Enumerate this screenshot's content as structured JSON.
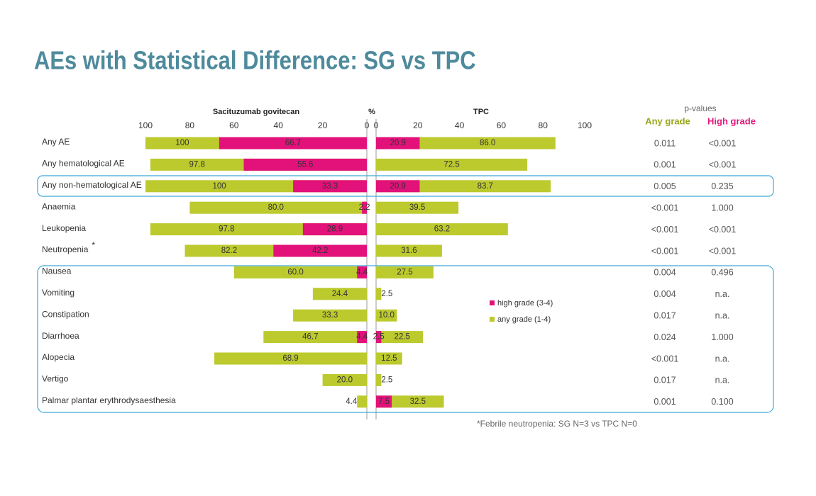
{
  "chart_data": {
    "type": "butterfly",
    "title": "AEs with Statistical Difference: SG vs TPC",
    "axis_unit": "%",
    "categories": [
      "Any AE",
      "Any hematological AE",
      "Any non-hematological AE",
      "Anaemia",
      "Leukopenia",
      "Neutropenia",
      "Nausea",
      "Vomiting",
      "Constipation",
      "Diarrhoea",
      "Alopecia",
      "Vertigo",
      "Palmar plantar erythrodysaesthesia"
    ],
    "footnote_marker": "*",
    "xlim": [
      0,
      100
    ],
    "xticks": [
      0,
      20,
      40,
      60,
      80,
      100
    ],
    "panels": [
      {
        "name": "Sacituzumab govitecan",
        "series": [
          {
            "color": "#bcca2e",
            "values": [
              100,
              97.8,
              100,
              80.0,
              97.8,
              82.2,
              60.0,
              24.4,
              33.3,
              46.7,
              68.9,
              20.0,
              4.4
            ],
            "value_labels": [
              "100",
              "97.8",
              "100",
              "80.0",
              "97.8",
              "82.2",
              "60.0",
              "24.4",
              "33.3",
              "46.7",
              "68.9",
              "20.0",
              "4.4"
            ]
          },
          {
            "color": "#e2127a",
            "values": [
              66.7,
              55.6,
              33.3,
              2.2,
              28.9,
              42.2,
              4.4,
              null,
              null,
              4.4,
              null,
              null,
              null
            ],
            "value_labels": [
              "66.7",
              "55.6",
              "33.3",
              "2.2",
              "28.9",
              "42.2",
              "4.4",
              null,
              null,
              "4.4",
              null,
              null,
              null
            ]
          }
        ]
      },
      {
        "name": "TPC",
        "series": [
          {
            "color": "#bcca2e",
            "values": [
              86.0,
              72.5,
              83.7,
              39.5,
              63.2,
              31.6,
              27.5,
              2.5,
              10.0,
              22.5,
              12.5,
              2.5,
              32.5
            ],
            "value_labels": [
              "86.0",
              "72.5",
              "83.7",
              "39.5",
              "63.2",
              "31.6",
              "27.5",
              "2.5",
              "10.0",
              "22.5",
              "12.5",
              "2.5",
              "32.5"
            ]
          },
          {
            "color": "#e2127a",
            "values": [
              20.9,
              null,
              20.9,
              null,
              null,
              null,
              null,
              null,
              null,
              2.5,
              null,
              null,
              7.5
            ],
            "value_labels": [
              "20.9",
              null,
              "20.9",
              null,
              null,
              null,
              null,
              null,
              null,
              "2.5",
              null,
              null,
              "7.5"
            ]
          }
        ]
      }
    ],
    "legend": [
      {
        "name": "high grade (3-4)",
        "color": "#e2127a"
      },
      {
        "name": "any grade (1-4)",
        "color": "#bcca2e"
      }
    ],
    "pvalues": {
      "title": "p-values",
      "columns": [
        {
          "name": "Any grade",
          "color": "#9aa61b",
          "values": [
            "0.011",
            "0.001",
            "0.005",
            "<0.001",
            "<0.001",
            "<0.001",
            "0.004",
            "0.004",
            "0.017",
            "0.024",
            "<0.001",
            "0.017",
            "0.001"
          ]
        },
        {
          "name": "High grade",
          "color": "#e0197d",
          "values": [
            "<0.001",
            "<0.001",
            "0.235",
            "1.000",
            "<0.001",
            "<0.001",
            "0.496",
            "n.a.",
            "n.a.",
            "1.000",
            "n.a.",
            "n.a.",
            "0.100"
          ]
        }
      ]
    },
    "footnote": "*Febrile neutropenia: SG N=3 vs TPC N=0"
  }
}
